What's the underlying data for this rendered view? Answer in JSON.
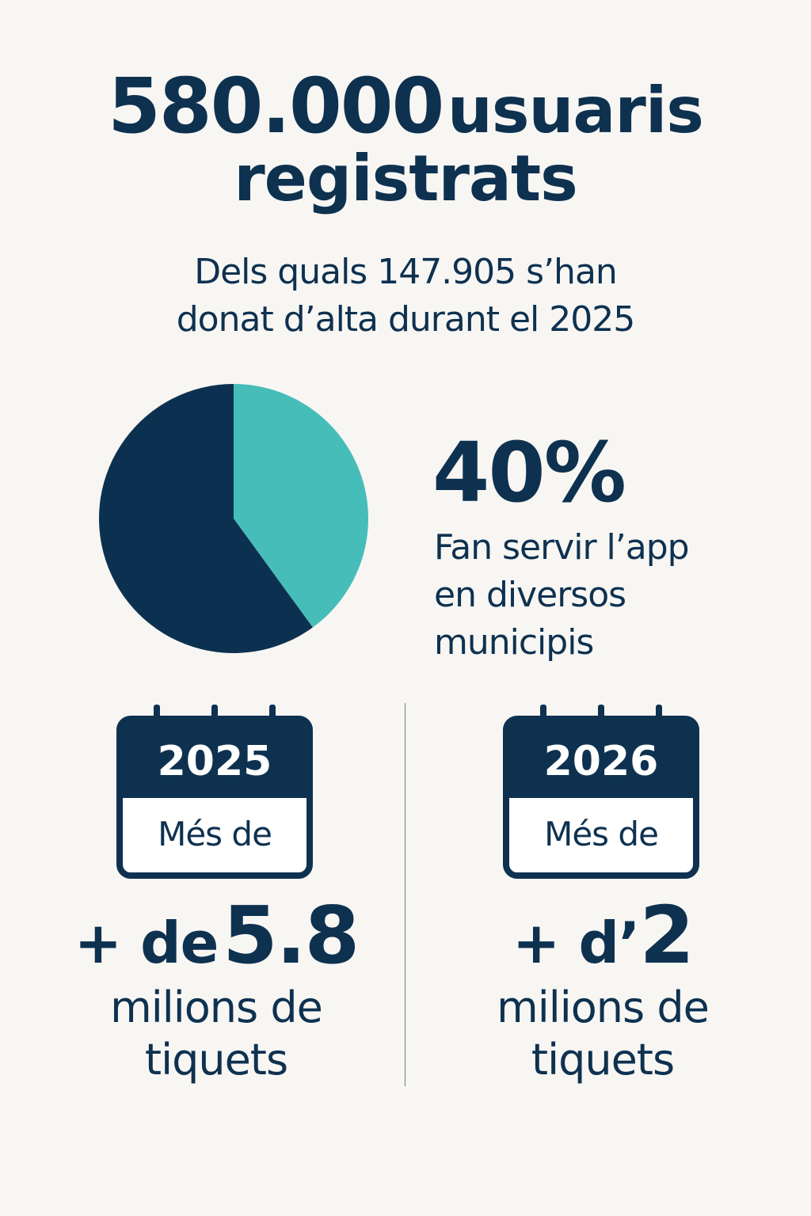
{
  "headline": {
    "number": "580.000",
    "word1": "usuaris",
    "word2": "registrats"
  },
  "subtitle": {
    "line1": "Dels quals 147.905 s’han",
    "line2": "donat d’alta durant el 2025"
  },
  "chart_data": {
    "type": "pie",
    "slices": [
      {
        "label": "Fan servir l’app en diversos municipis",
        "value": 40,
        "color": "#47bdb9"
      },
      {
        "label": "",
        "value": 60,
        "color": "#0c3150"
      }
    ],
    "title": "",
    "legend": "none"
  },
  "percent_stat": {
    "value": "40%",
    "line1": "Fan servir l’app",
    "line2": "en diversos",
    "line3": "municipis"
  },
  "stats": [
    {
      "year": "2025",
      "calendar_text": "Més de",
      "prefix": "+ de",
      "value": "5.8",
      "unit_line1": "milions de",
      "unit_line2": "tiquets"
    },
    {
      "year": "2026",
      "calendar_text": "Més de",
      "prefix": "+ d’",
      "value": "2",
      "unit_line1": "milions de",
      "unit_line2": "tiquets"
    }
  ],
  "colors": {
    "navy": "#0e3150",
    "teal": "#47bdb9",
    "background": "#f8f6f3"
  }
}
